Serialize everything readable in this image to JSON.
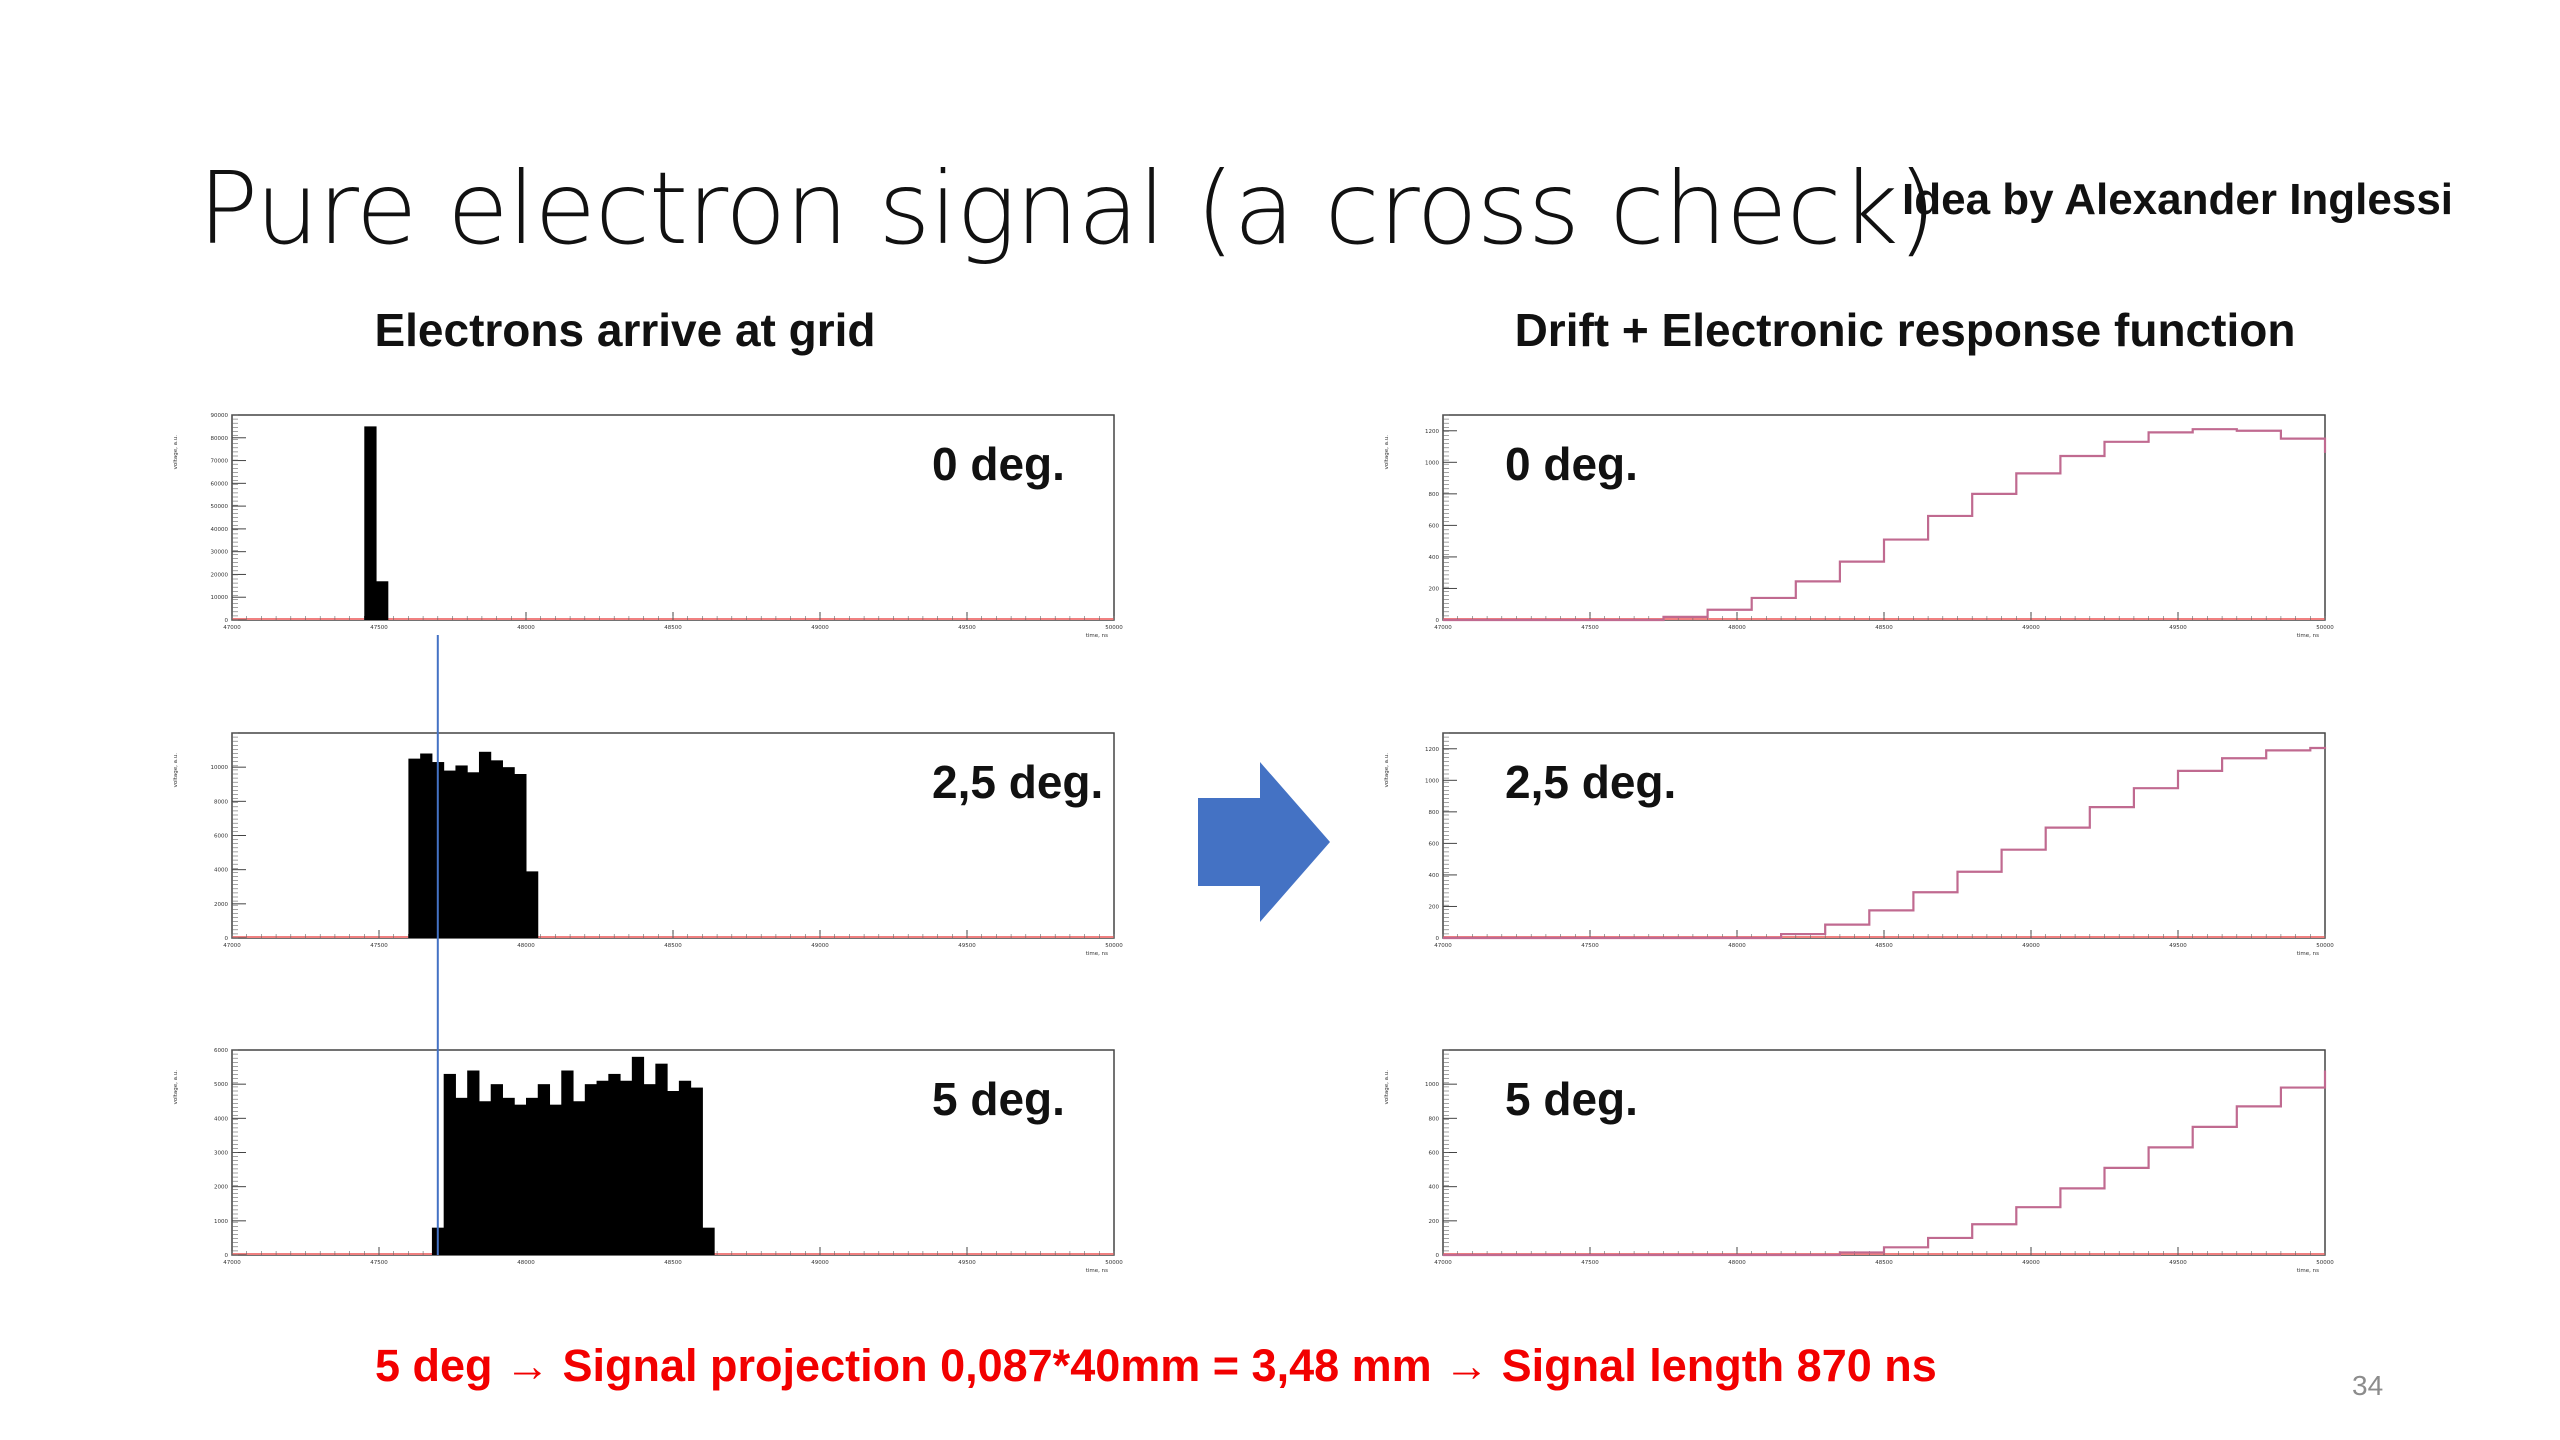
{
  "slide": {
    "title": "Pure electron signal (a cross check)",
    "credit": "Idea by Alexander Inglessi",
    "left_heading": "Electrons arrive at grid",
    "right_heading": "Drift + Electronic response function",
    "footer_note": "5 deg → Signal projection 0,087*40mm = 3,48 mm → Signal length 870 ns",
    "page_number": "34",
    "arrow_color": "#4472c4",
    "footer_color": "#f20000"
  },
  "chart_data": [
    {
      "type": "bar",
      "id": "left-0",
      "column": "left",
      "label": "0 deg.",
      "xlabel": "time, ns",
      "ylabel": "voltage, a.u.",
      "xlim": [
        47000,
        50000
      ],
      "ylim": [
        0,
        90000
      ],
      "xticks": [
        "47000",
        "47500",
        "48000",
        "48500",
        "49000",
        "49500",
        "50000"
      ],
      "yticks": [
        "0",
        "10000",
        "20000",
        "30000",
        "40000",
        "50000",
        "60000",
        "70000",
        "80000",
        "90000"
      ],
      "bin_width": 40,
      "bins": [
        {
          "x": 47450,
          "y": 85000
        },
        {
          "x": 47490,
          "y": 17000
        }
      ]
    },
    {
      "type": "bar",
      "id": "left-1",
      "column": "left",
      "label": "2,5 deg.",
      "xlabel": "time, ns",
      "ylabel": "voltage, a.u.",
      "xlim": [
        47000,
        50000
      ],
      "ylim": [
        0,
        12000
      ],
      "xticks": [
        "47000",
        "47500",
        "48000",
        "48500",
        "49000",
        "49500",
        "50000"
      ],
      "yticks": [
        "0",
        "2000",
        "4000",
        "6000",
        "8000",
        "10000"
      ],
      "bin_width": 40,
      "bins": [
        {
          "x": 47600,
          "y": 10500
        },
        {
          "x": 47640,
          "y": 10800
        },
        {
          "x": 47680,
          "y": 10300
        },
        {
          "x": 47720,
          "y": 9800
        },
        {
          "x": 47760,
          "y": 10100
        },
        {
          "x": 47800,
          "y": 9700
        },
        {
          "x": 47840,
          "y": 10900
        },
        {
          "x": 47880,
          "y": 10400
        },
        {
          "x": 47920,
          "y": 10000
        },
        {
          "x": 47960,
          "y": 9600
        },
        {
          "x": 48000,
          "y": 3900
        }
      ]
    },
    {
      "type": "bar",
      "id": "left-2",
      "column": "left",
      "label": "5 deg.",
      "xlabel": "time, ns",
      "ylabel": "voltage, a.u.",
      "xlim": [
        47000,
        50000
      ],
      "ylim": [
        0,
        6000
      ],
      "xticks": [
        "47000",
        "47500",
        "48000",
        "48500",
        "49000",
        "49500",
        "50000"
      ],
      "yticks": [
        "0",
        "1000",
        "2000",
        "3000",
        "4000",
        "5000",
        "6000"
      ],
      "bin_width": 40,
      "bins": [
        {
          "x": 47680,
          "y": 800
        },
        {
          "x": 47720,
          "y": 5300
        },
        {
          "x": 47760,
          "y": 4600
        },
        {
          "x": 47800,
          "y": 5400
        },
        {
          "x": 47840,
          "y": 4500
        },
        {
          "x": 47880,
          "y": 5000
        },
        {
          "x": 47920,
          "y": 4600
        },
        {
          "x": 47960,
          "y": 4400
        },
        {
          "x": 48000,
          "y": 4600
        },
        {
          "x": 48040,
          "y": 5000
        },
        {
          "x": 48080,
          "y": 4400
        },
        {
          "x": 48120,
          "y": 5400
        },
        {
          "x": 48160,
          "y": 4500
        },
        {
          "x": 48200,
          "y": 5000
        },
        {
          "x": 48240,
          "y": 5100
        },
        {
          "x": 48280,
          "y": 5300
        },
        {
          "x": 48320,
          "y": 5100
        },
        {
          "x": 48360,
          "y": 5800
        },
        {
          "x": 48400,
          "y": 5000
        },
        {
          "x": 48440,
          "y": 5600
        },
        {
          "x": 48480,
          "y": 4800
        },
        {
          "x": 48520,
          "y": 5100
        },
        {
          "x": 48560,
          "y": 4900
        },
        {
          "x": 48600,
          "y": 800
        }
      ]
    },
    {
      "type": "line",
      "id": "right-0",
      "column": "right",
      "label": "0 deg.",
      "xlabel": "time, ns",
      "ylabel": "voltage, a.u.",
      "xlim": [
        47000,
        50000
      ],
      "ylim": [
        0,
        1300
      ],
      "xticks": [
        "47000",
        "47500",
        "48000",
        "48500",
        "49000",
        "49500",
        "50000"
      ],
      "yticks": [
        "0",
        "200",
        "400",
        "600",
        "800",
        "1000",
        "1200"
      ],
      "x": [
        47000,
        47600,
        47750,
        47900,
        48050,
        48200,
        48350,
        48500,
        48650,
        48800,
        48950,
        49100,
        49250,
        49400,
        49550,
        49700,
        49850,
        50000
      ],
      "y": [
        0,
        0,
        20,
        65,
        140,
        245,
        370,
        510,
        660,
        800,
        930,
        1040,
        1130,
        1190,
        1210,
        1200,
        1150,
        1060
      ]
    },
    {
      "type": "line",
      "id": "right-1",
      "column": "right",
      "label": "2,5 deg.",
      "xlabel": "time, ns",
      "ylabel": "voltage, a.u.",
      "xlim": [
        47000,
        50000
      ],
      "ylim": [
        0,
        1300
      ],
      "xticks": [
        "47000",
        "47500",
        "48000",
        "48500",
        "49000",
        "49500",
        "50000"
      ],
      "yticks": [
        "0",
        "200",
        "400",
        "600",
        "800",
        "1000",
        "1200"
      ],
      "x": [
        47000,
        48000,
        48150,
        48300,
        48450,
        48600,
        48750,
        48900,
        49050,
        49200,
        49350,
        49500,
        49650,
        49800,
        49950,
        50000
      ],
      "y": [
        0,
        0,
        25,
        85,
        175,
        290,
        420,
        560,
        700,
        830,
        950,
        1060,
        1140,
        1190,
        1205,
        1200
      ]
    },
    {
      "type": "line",
      "id": "right-2",
      "column": "right",
      "label": "5 deg.",
      "xlabel": "time, ns",
      "ylabel": "voltage, a.u.",
      "xlim": [
        47000,
        50000
      ],
      "ylim": [
        0,
        1200
      ],
      "xticks": [
        "47000",
        "47500",
        "48000",
        "48500",
        "49000",
        "49500",
        "50000"
      ],
      "yticks": [
        "0",
        "200",
        "400",
        "600",
        "800",
        "1000"
      ],
      "x": [
        47000,
        48200,
        48350,
        48500,
        48650,
        48800,
        48950,
        49100,
        49250,
        49400,
        49550,
        49700,
        49850,
        50000
      ],
      "y": [
        0,
        0,
        15,
        45,
        100,
        180,
        280,
        390,
        510,
        630,
        750,
        870,
        980,
        1080
      ]
    }
  ]
}
